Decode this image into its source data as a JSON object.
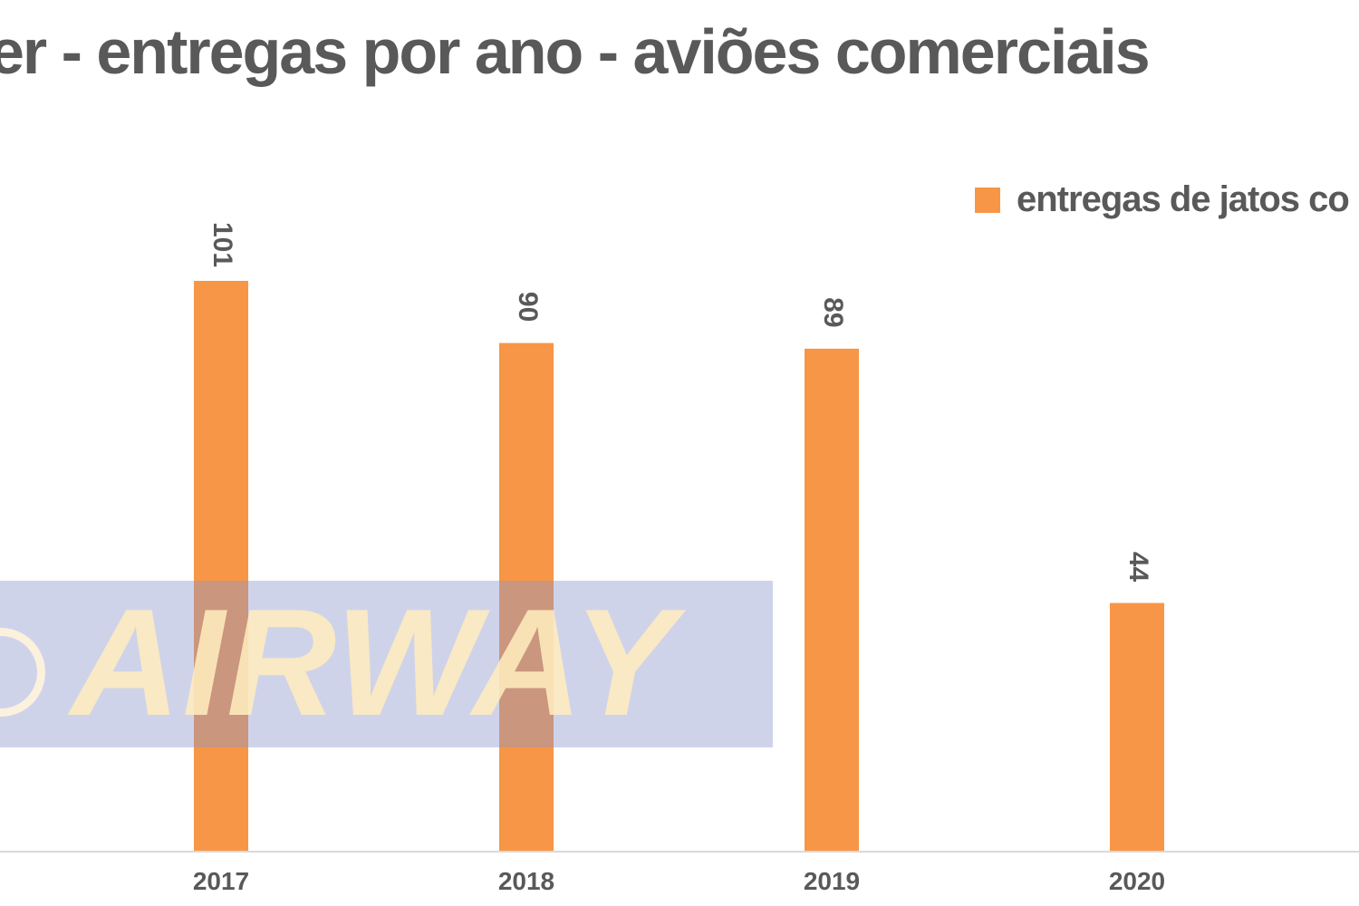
{
  "chart_data": {
    "type": "bar",
    "title": "er - entregas por ano - aviões comerciais",
    "categories": [
      "2017",
      "2018",
      "2019",
      "2020"
    ],
    "series": [
      {
        "name": "entregas de jatos co",
        "values": [
          101,
          90,
          89,
          44
        ]
      }
    ],
    "ylim": [
      0,
      101
    ],
    "data_labels": [
      "101",
      "90",
      "89",
      "44"
    ],
    "data_label_orientation": "rotated",
    "legend_position": "top-right",
    "grid": false,
    "bar_color": "#F79646",
    "axis_color": "#D9D9D9",
    "text_color": "#595959"
  },
  "watermark": {
    "text": "AIRWAY",
    "icon": "airway-logo-icon"
  }
}
